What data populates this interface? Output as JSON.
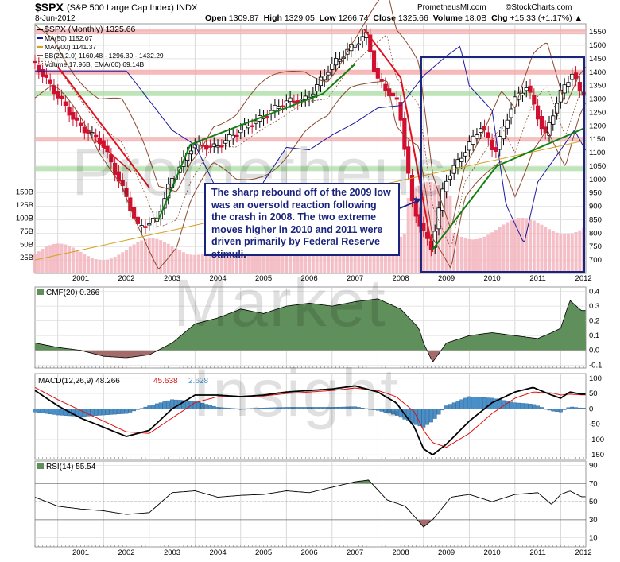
{
  "header": {
    "symbol": "$SPX",
    "description": "(S&P 500 Large Cap Index) INDX",
    "date": "8-Jun-2012",
    "quote": {
      "open_label": "Open",
      "open": "1309.87",
      "high_label": "High",
      "high": "1329.05",
      "low_label": "Low",
      "low": "1266.74",
      "close_label": "Close",
      "close": "1325.66",
      "volume_label": "Volume",
      "volume": "18.0B",
      "chg_label": "Chg",
      "chg": "+15.33 (+1.17%)"
    },
    "brand": "©StockCharts.com",
    "site": "PrometheusMI.com"
  },
  "watermark": [
    "Prometheus",
    "Market",
    "Insight"
  ],
  "annotation": "The sharp rebound off of the 2009 low was an oversold reaction following the crash in 2008. The two extreme moves higher in 2010 and 2011 were driven primarily by Federal Reserve stimuli.",
  "colors": {
    "ma50": "#1a1aa0",
    "ma200": "#d4a020",
    "bb": "#8b4a2e",
    "volume": "#f2b4bc",
    "bull_candle": "#000000",
    "bear_candle": "#d01030",
    "cmf_fill": "#5f8f5a",
    "cmf_neg": "#a56b6b",
    "macd_line": "#000000",
    "signal": "#e01010",
    "hist": "#4a90c8",
    "trend_up": "#108010",
    "trend_down": "#e01020",
    "box": "#1a237e",
    "band_red": "#f5a0a0",
    "band_green": "#a8dca0"
  },
  "chart_data": [
    {
      "type": "line",
      "title": "$SPX (Monthly) 1325.66",
      "legend": [
        {
          "label": "$SPX (Monthly) 1325.66",
          "key": "price"
        },
        {
          "label": "MA(50) 1152.07",
          "key": "ma50"
        },
        {
          "label": "MA(200) 1141.37",
          "key": "ma200"
        },
        {
          "label": "BB(20,2.0) 1160.48 - 1296.39 - 1432.29",
          "key": "bb"
        },
        {
          "label": "Volume 17.96B, EMA(60) 69.14B",
          "key": "volume"
        }
      ],
      "legend_position": "top-left",
      "x_ticks": [
        "2001",
        "2002",
        "2003",
        "2004",
        "2005",
        "2006",
        "2007",
        "2008",
        "2009",
        "2010",
        "2011",
        "2012"
      ],
      "y_ticks": [
        700,
        750,
        800,
        850,
        900,
        950,
        1000,
        1050,
        1100,
        1150,
        1200,
        1250,
        1300,
        1350,
        1400,
        1450,
        1500,
        1550
      ],
      "ylim": [
        650,
        1580
      ],
      "volume_ticks": [
        "25B",
        "50B",
        "75B",
        "100B",
        "125B",
        "150B"
      ],
      "x": [
        2000.5,
        2001.0,
        2001.5,
        2002.0,
        2002.5,
        2002.8,
        2003.2,
        2003.5,
        2004.0,
        2004.5,
        2005.0,
        2005.5,
        2006.0,
        2006.5,
        2007.0,
        2007.5,
        2007.8,
        2008.0,
        2008.5,
        2008.8,
        2009.0,
        2009.2,
        2009.5,
        2010.0,
        2010.3,
        2010.6,
        2011.0,
        2011.3,
        2011.7,
        2012.0,
        2012.3,
        2012.45
      ],
      "close": [
        1440,
        1320,
        1200,
        1140,
        950,
        820,
        850,
        990,
        1130,
        1120,
        1180,
        1230,
        1290,
        1300,
        1420,
        1500,
        1540,
        1380,
        1280,
        900,
        820,
        740,
        990,
        1120,
        1200,
        1100,
        1290,
        1350,
        1160,
        1310,
        1400,
        1325
      ],
      "ma50_level": 1152.07,
      "ma200_level": 1141.37,
      "bb": {
        "lower": 1160.48,
        "middle": 1296.39,
        "upper": 1432.29
      },
      "volume_last": "17.96B",
      "volume_ema60": "69.14B"
    },
    {
      "type": "area",
      "title": "CMF(20) 0.266",
      "y_ticks": [
        -0.1,
        0.0,
        0.1,
        0.2,
        0.3,
        0.4
      ],
      "ylim": [
        -0.12,
        0.43
      ],
      "x": [
        2000.5,
        2001.0,
        2001.5,
        2002.0,
        2002.5,
        2003.0,
        2003.5,
        2004.0,
        2004.5,
        2005.0,
        2005.5,
        2006.0,
        2006.5,
        2007.0,
        2007.5,
        2008.0,
        2008.5,
        2008.9,
        2009.0,
        2009.2,
        2009.5,
        2010.0,
        2010.5,
        2011.0,
        2011.5,
        2011.8,
        2012.0,
        2012.2,
        2012.45
      ],
      "values": [
        0.05,
        0.02,
        0.0,
        -0.04,
        -0.05,
        -0.03,
        0.05,
        0.18,
        0.22,
        0.28,
        0.25,
        0.3,
        0.32,
        0.3,
        0.33,
        0.35,
        0.28,
        0.15,
        0.05,
        -0.08,
        0.05,
        0.1,
        0.12,
        0.1,
        0.08,
        0.12,
        0.15,
        0.34,
        0.27
      ]
    },
    {
      "type": "line",
      "title": "MACD(12,26,9) 48.266, 45.638, 2.628",
      "legend": [
        {
          "label": "MACD(12,26,9) 48.266",
          "key": "macd"
        },
        {
          "label": "45.638",
          "key": "signal"
        },
        {
          "label": "2.628",
          "key": "hist"
        }
      ],
      "y_ticks": [
        -150,
        -100,
        -50,
        0,
        50,
        100
      ],
      "ylim": [
        -165,
        115
      ],
      "x": [
        2000.5,
        2001.0,
        2001.5,
        2002.0,
        2002.5,
        2003.0,
        2003.5,
        2004.0,
        2004.5,
        2005.0,
        2005.5,
        2006.0,
        2006.5,
        2007.0,
        2007.5,
        2008.0,
        2008.4,
        2008.8,
        2009.0,
        2009.2,
        2009.5,
        2010.0,
        2010.5,
        2011.0,
        2011.4,
        2011.8,
        2012.0,
        2012.2,
        2012.45
      ],
      "macd": [
        60,
        10,
        -30,
        -60,
        -90,
        -70,
        0,
        45,
        45,
        40,
        45,
        55,
        60,
        65,
        75,
        55,
        20,
        -60,
        -130,
        -150,
        -115,
        -40,
        20,
        55,
        70,
        45,
        35,
        55,
        48
      ],
      "signal": [
        70,
        30,
        -5,
        -40,
        -75,
        -80,
        -30,
        20,
        40,
        40,
        42,
        50,
        55,
        60,
        68,
        60,
        40,
        -10,
        -70,
        -110,
        -125,
        -80,
        -15,
        35,
        55,
        52,
        45,
        48,
        45.6
      ],
      "hist": [
        -10,
        -20,
        -25,
        -20,
        -15,
        10,
        30,
        25,
        5,
        0,
        3,
        5,
        5,
        5,
        7,
        -5,
        -20,
        -50,
        -60,
        -40,
        10,
        40,
        35,
        20,
        15,
        -7,
        -10,
        7,
        2.6
      ]
    },
    {
      "type": "line",
      "title": "RSI(14) 55.54",
      "y_ticks": [
        10,
        30,
        50,
        70,
        90
      ],
      "ylim": [
        0,
        95
      ],
      "x": [
        2000.5,
        2001.0,
        2001.5,
        2002.0,
        2002.5,
        2003.0,
        2003.5,
        2004.0,
        2004.5,
        2005.0,
        2005.5,
        2006.0,
        2006.5,
        2007.0,
        2007.5,
        2007.8,
        2008.2,
        2008.6,
        2008.9,
        2009.0,
        2009.2,
        2009.6,
        2010.0,
        2010.5,
        2011.0,
        2011.5,
        2011.8,
        2012.0,
        2012.2,
        2012.45
      ],
      "values": [
        55,
        45,
        42,
        40,
        36,
        38,
        60,
        62,
        55,
        57,
        58,
        62,
        60,
        66,
        72,
        74,
        52,
        45,
        28,
        22,
        30,
        55,
        58,
        50,
        58,
        60,
        47,
        58,
        62,
        55.5
      ]
    }
  ]
}
